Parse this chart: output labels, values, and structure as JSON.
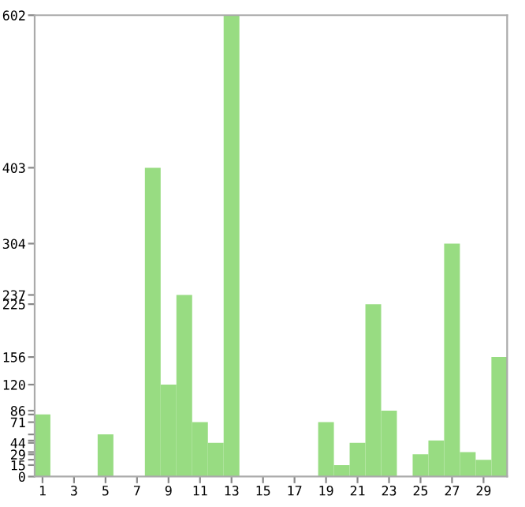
{
  "chart_data": {
    "type": "bar",
    "categories": [
      "1",
      null,
      "3",
      null,
      "5",
      null,
      "7",
      null,
      "9",
      null,
      "11",
      null,
      "13",
      null,
      "15",
      null,
      "17",
      null,
      "19",
      null,
      "21",
      null,
      "23",
      null,
      "25",
      null,
      "27",
      null,
      "29",
      null
    ],
    "values": [
      81,
      0,
      0,
      0,
      55,
      0,
      0,
      403,
      120,
      237,
      71,
      44,
      602,
      0,
      0,
      0,
      0,
      0,
      71,
      15,
      44,
      225,
      86,
      0,
      29,
      47,
      304,
      32,
      22,
      156
    ],
    "color": "#98dc82",
    "ylim": [
      0,
      602
    ],
    "yticks": [
      0,
      15,
      {
        "value": 22,
        "label": null
      },
      29,
      {
        "value": 32,
        "label": null
      },
      44,
      {
        "value": 47,
        "label": null
      },
      {
        "value": 55,
        "label": null
      },
      71,
      {
        "value": 81,
        "label": null
      },
      86,
      120,
      156,
      225,
      237,
      304,
      403,
      602
    ],
    "grid": false
  }
}
